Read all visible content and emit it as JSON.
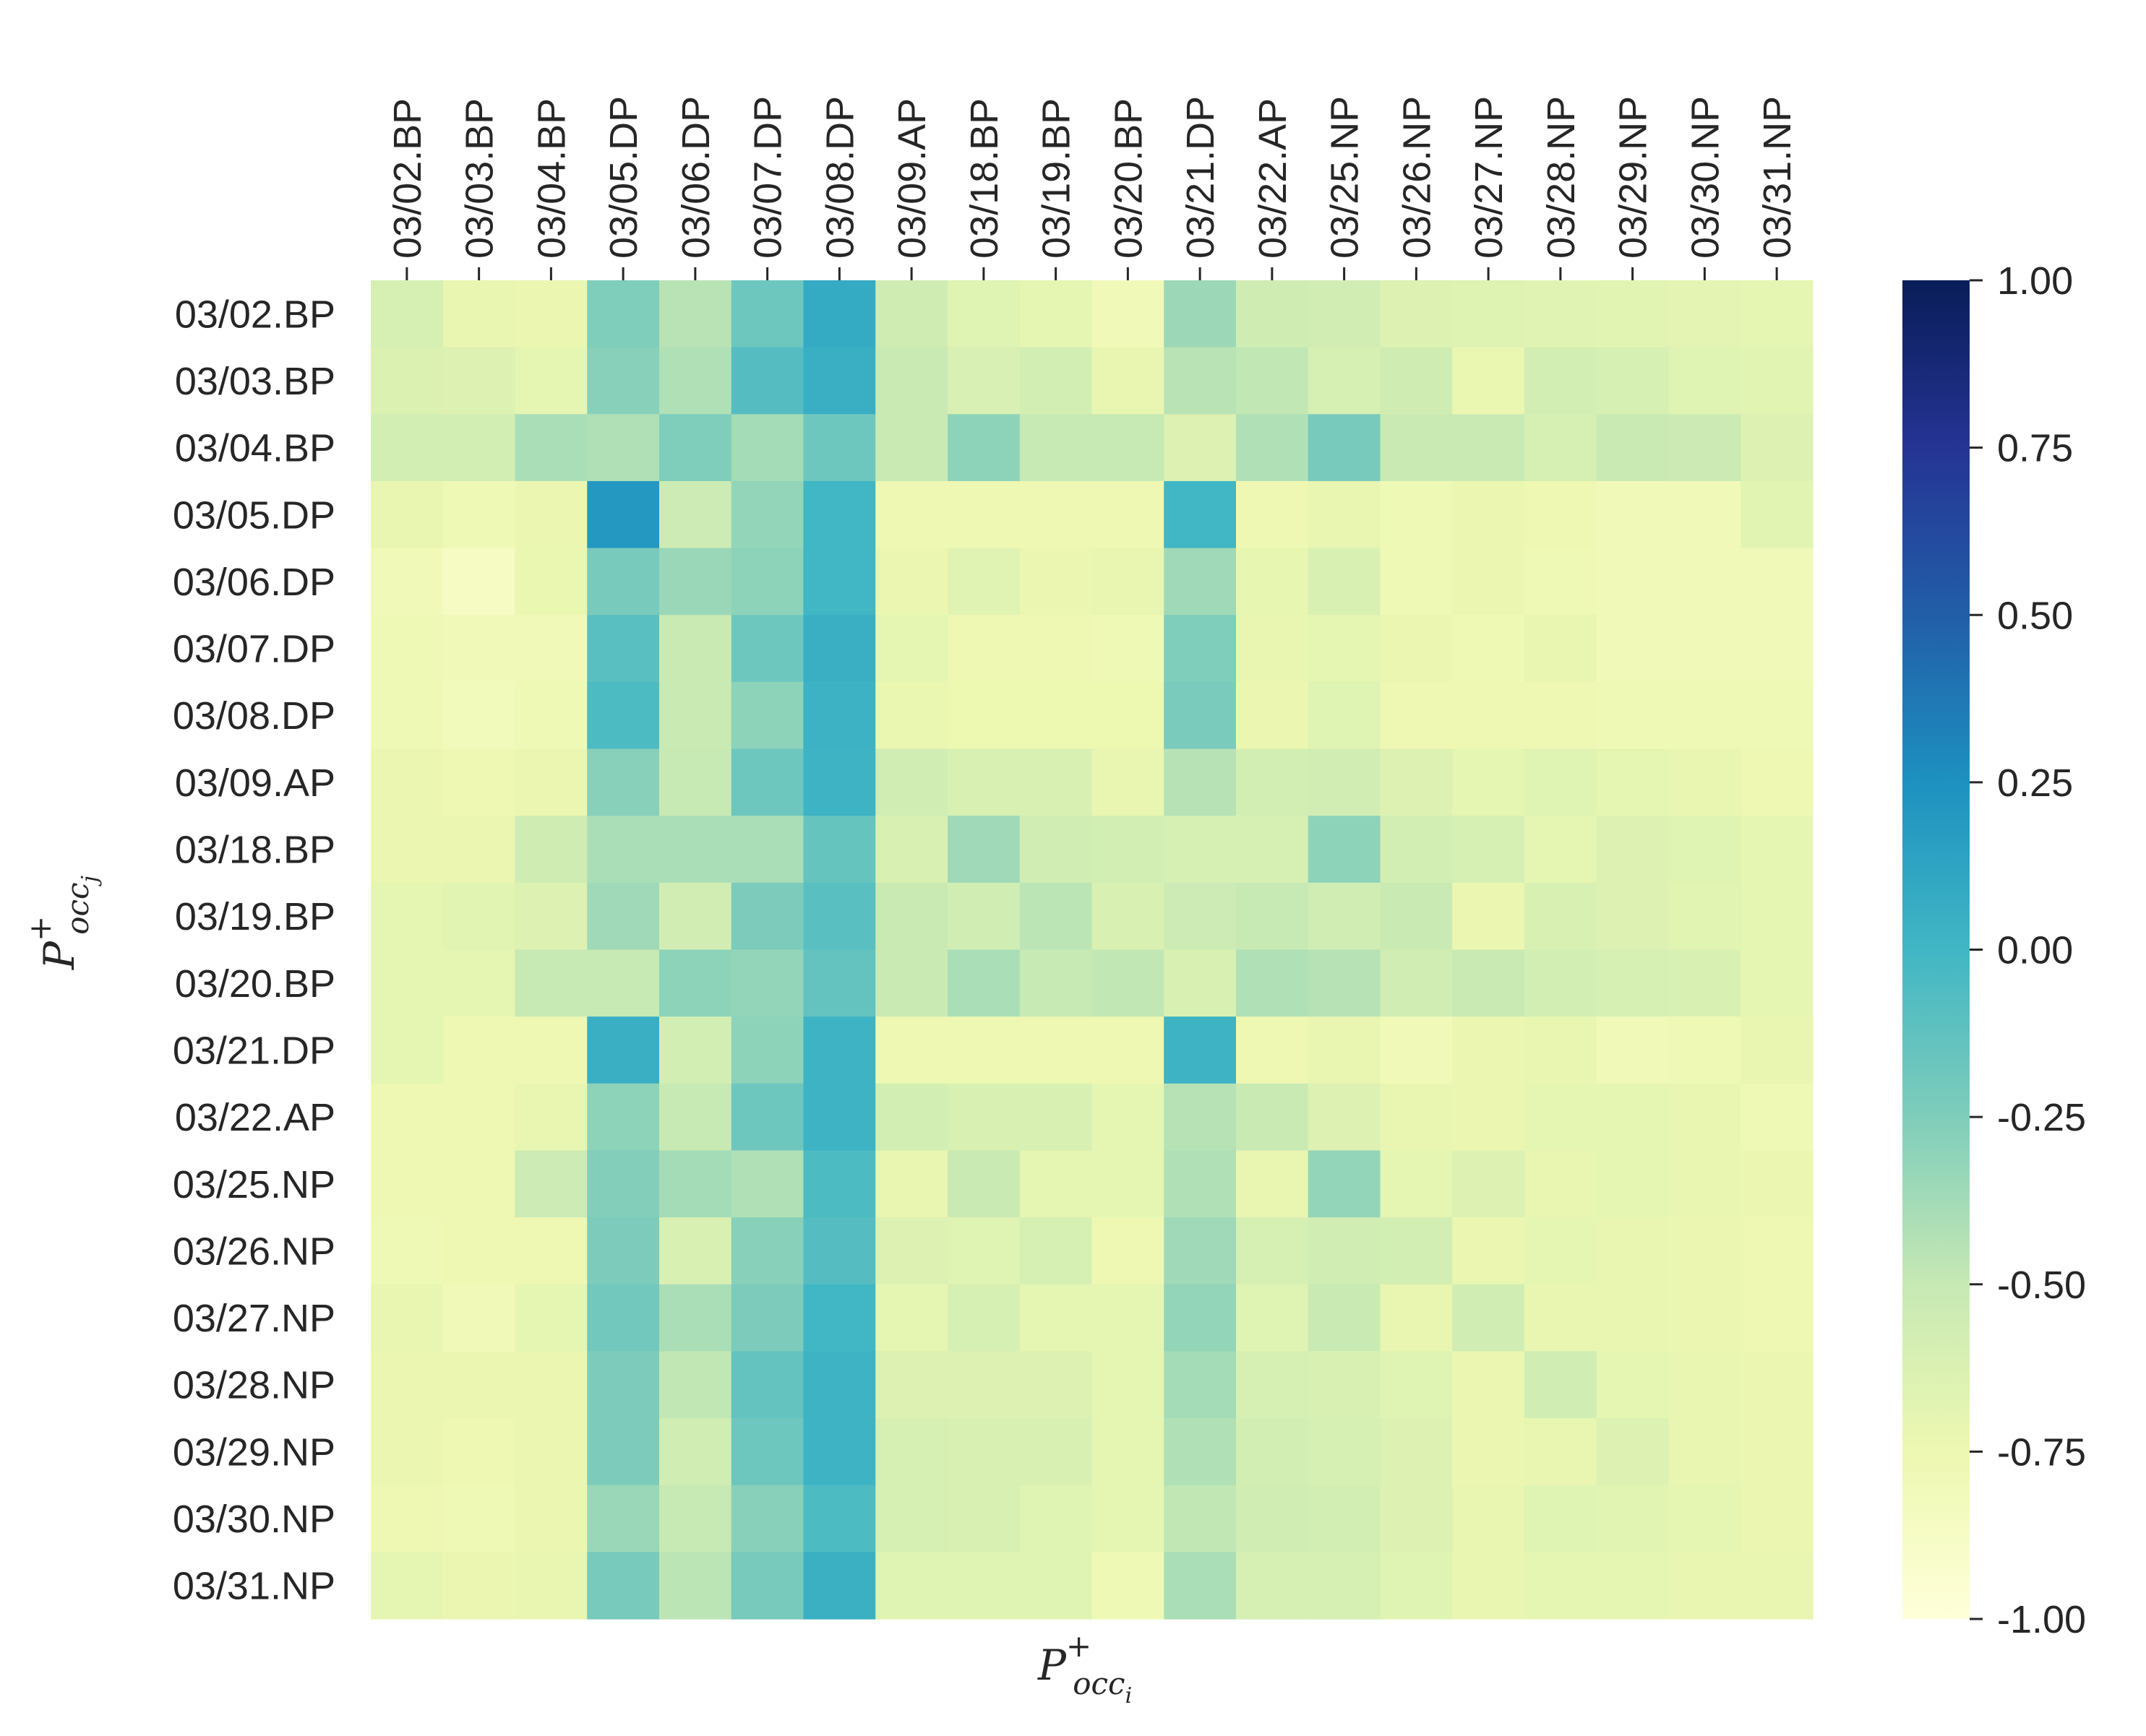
{
  "chart_data": {
    "type": "heatmap",
    "title": "",
    "xlabel": {
      "base": "P",
      "sup": "+",
      "sub": "occ",
      "subsub": "i"
    },
    "ylabel": {
      "base": "P",
      "sup": "+",
      "sub": "occ",
      "subsub": "j"
    },
    "x_categories": [
      "03/02.BP",
      "03/03.BP",
      "03/04.BP",
      "03/05.DP",
      "03/06.DP",
      "03/07.DP",
      "03/08.DP",
      "03/09.AP",
      "03/18.BP",
      "03/19.BP",
      "03/20.BP",
      "03/21.DP",
      "03/22.AP",
      "03/25.NP",
      "03/26.NP",
      "03/27.NP",
      "03/28.NP",
      "03/29.NP",
      "03/30.NP",
      "03/31.NP"
    ],
    "y_categories": [
      "03/02.BP",
      "03/03.BP",
      "03/04.BP",
      "03/05.DP",
      "03/06.DP",
      "03/07.DP",
      "03/08.DP",
      "03/09.AP",
      "03/18.BP",
      "03/19.BP",
      "03/20.BP",
      "03/21.DP",
      "03/22.AP",
      "03/25.NP",
      "03/26.NP",
      "03/27.NP",
      "03/28.NP",
      "03/29.NP",
      "03/30.NP",
      "03/31.NP"
    ],
    "values": [
      [
        -0.6,
        -0.72,
        -0.74,
        -0.25,
        -0.45,
        -0.18,
        0.08,
        -0.55,
        -0.66,
        -0.7,
        -0.8,
        -0.35,
        -0.55,
        -0.57,
        -0.64,
        -0.65,
        -0.67,
        -0.68,
        -0.69,
        -0.7
      ],
      [
        -0.63,
        -0.64,
        -0.7,
        -0.28,
        -0.42,
        -0.08,
        0.05,
        -0.52,
        -0.61,
        -0.58,
        -0.72,
        -0.45,
        -0.48,
        -0.6,
        -0.55,
        -0.73,
        -0.58,
        -0.6,
        -0.66,
        -0.68
      ],
      [
        -0.58,
        -0.58,
        -0.4,
        -0.42,
        -0.25,
        -0.38,
        -0.18,
        -0.52,
        -0.3,
        -0.5,
        -0.5,
        -0.64,
        -0.42,
        -0.22,
        -0.52,
        -0.52,
        -0.6,
        -0.52,
        -0.53,
        -0.64
      ],
      [
        -0.72,
        -0.78,
        -0.74,
        0.2,
        -0.54,
        -0.32,
        0.0,
        -0.76,
        -0.76,
        -0.76,
        -0.76,
        0.0,
        -0.76,
        -0.72,
        -0.78,
        -0.74,
        -0.76,
        -0.8,
        -0.8,
        -0.68
      ],
      [
        -0.8,
        -0.86,
        -0.73,
        -0.22,
        -0.34,
        -0.3,
        0.0,
        -0.74,
        -0.67,
        -0.74,
        -0.72,
        -0.36,
        -0.71,
        -0.62,
        -0.78,
        -0.74,
        -0.78,
        -0.8,
        -0.8,
        -0.8
      ],
      [
        -0.78,
        -0.8,
        -0.8,
        -0.1,
        -0.52,
        -0.18,
        0.05,
        -0.7,
        -0.76,
        -0.76,
        -0.78,
        -0.25,
        -0.72,
        -0.7,
        -0.74,
        -0.77,
        -0.72,
        -0.8,
        -0.8,
        -0.8
      ],
      [
        -0.78,
        -0.81,
        -0.78,
        -0.05,
        -0.52,
        -0.3,
        0.03,
        -0.73,
        -0.75,
        -0.75,
        -0.75,
        -0.23,
        -0.74,
        -0.66,
        -0.76,
        -0.76,
        -0.76,
        -0.78,
        -0.78,
        -0.78
      ],
      [
        -0.74,
        -0.76,
        -0.74,
        -0.28,
        -0.5,
        -0.18,
        0.02,
        -0.56,
        -0.62,
        -0.62,
        -0.72,
        -0.44,
        -0.58,
        -0.57,
        -0.64,
        -0.7,
        -0.66,
        -0.7,
        -0.72,
        -0.76
      ],
      [
        -0.74,
        -0.74,
        -0.55,
        -0.4,
        -0.4,
        -0.4,
        -0.15,
        -0.62,
        -0.36,
        -0.56,
        -0.58,
        -0.6,
        -0.6,
        -0.3,
        -0.58,
        -0.6,
        -0.7,
        -0.64,
        -0.66,
        -0.7
      ],
      [
        -0.7,
        -0.68,
        -0.64,
        -0.36,
        -0.57,
        -0.24,
        -0.1,
        -0.52,
        -0.56,
        -0.46,
        -0.62,
        -0.54,
        -0.5,
        -0.56,
        -0.52,
        -0.74,
        -0.62,
        -0.64,
        -0.68,
        -0.7
      ],
      [
        -0.7,
        -0.7,
        -0.5,
        -0.5,
        -0.3,
        -0.32,
        -0.14,
        -0.52,
        -0.4,
        -0.5,
        -0.48,
        -0.62,
        -0.42,
        -0.44,
        -0.56,
        -0.52,
        -0.58,
        -0.6,
        -0.62,
        -0.7
      ],
      [
        -0.7,
        -0.76,
        -0.76,
        0.05,
        -0.58,
        -0.3,
        0.02,
        -0.76,
        -0.76,
        -0.76,
        -0.76,
        0.02,
        -0.76,
        -0.72,
        -0.8,
        -0.74,
        -0.72,
        -0.8,
        -0.78,
        -0.72
      ],
      [
        -0.76,
        -0.76,
        -0.72,
        -0.3,
        -0.5,
        -0.18,
        0.02,
        -0.58,
        -0.62,
        -0.62,
        -0.7,
        -0.44,
        -0.52,
        -0.64,
        -0.72,
        -0.74,
        -0.7,
        -0.7,
        -0.72,
        -0.78
      ],
      [
        -0.76,
        -0.76,
        -0.54,
        -0.26,
        -0.38,
        -0.42,
        -0.05,
        -0.72,
        -0.52,
        -0.7,
        -0.7,
        -0.42,
        -0.72,
        -0.32,
        -0.7,
        -0.64,
        -0.72,
        -0.7,
        -0.72,
        -0.74
      ],
      [
        -0.78,
        -0.76,
        -0.76,
        -0.24,
        -0.62,
        -0.28,
        -0.08,
        -0.64,
        -0.66,
        -0.6,
        -0.76,
        -0.36,
        -0.6,
        -0.56,
        -0.58,
        -0.74,
        -0.7,
        -0.72,
        -0.74,
        -0.76
      ],
      [
        -0.72,
        -0.8,
        -0.7,
        -0.2,
        -0.4,
        -0.24,
        0.0,
        -0.7,
        -0.6,
        -0.7,
        -0.7,
        -0.32,
        -0.66,
        -0.52,
        -0.72,
        -0.56,
        -0.72,
        -0.72,
        -0.74,
        -0.76
      ],
      [
        -0.74,
        -0.74,
        -0.74,
        -0.24,
        -0.48,
        -0.14,
        0.02,
        -0.64,
        -0.64,
        -0.64,
        -0.7,
        -0.38,
        -0.6,
        -0.62,
        -0.66,
        -0.74,
        -0.56,
        -0.7,
        -0.72,
        -0.74
      ],
      [
        -0.74,
        -0.76,
        -0.74,
        -0.24,
        -0.56,
        -0.18,
        0.02,
        -0.6,
        -0.62,
        -0.62,
        -0.7,
        -0.42,
        -0.58,
        -0.6,
        -0.64,
        -0.74,
        -0.72,
        -0.64,
        -0.72,
        -0.74
      ],
      [
        -0.76,
        -0.78,
        -0.74,
        -0.34,
        -0.5,
        -0.28,
        -0.05,
        -0.6,
        -0.62,
        -0.66,
        -0.7,
        -0.48,
        -0.56,
        -0.58,
        -0.64,
        -0.72,
        -0.66,
        -0.68,
        -0.7,
        -0.74
      ],
      [
        -0.7,
        -0.74,
        -0.72,
        -0.22,
        -0.46,
        -0.22,
        0.04,
        -0.66,
        -0.66,
        -0.66,
        -0.78,
        -0.4,
        -0.6,
        -0.6,
        -0.66,
        -0.72,
        -0.7,
        -0.7,
        -0.72,
        -0.72
      ]
    ],
    "vmin": -1.0,
    "vmax": 1.0,
    "colormap": "YlGnBu",
    "colormap_stops": [
      "#ffffd9",
      "#edf8b1",
      "#c7e9b4",
      "#7fcdbb",
      "#41b6c4",
      "#1d91c0",
      "#225ea8",
      "#253494",
      "#081d58"
    ],
    "colorbar_ticks": [
      1.0,
      0.75,
      0.5,
      0.25,
      0.0,
      -0.25,
      -0.5,
      -0.75,
      -1.0
    ],
    "colorbar_tick_labels": [
      "1.00",
      "0.75",
      "0.50",
      "0.25",
      "0.00",
      "-0.25",
      "-0.50",
      "-0.75",
      "-1.00"
    ],
    "x_tick_position": "top",
    "grid": false
  }
}
